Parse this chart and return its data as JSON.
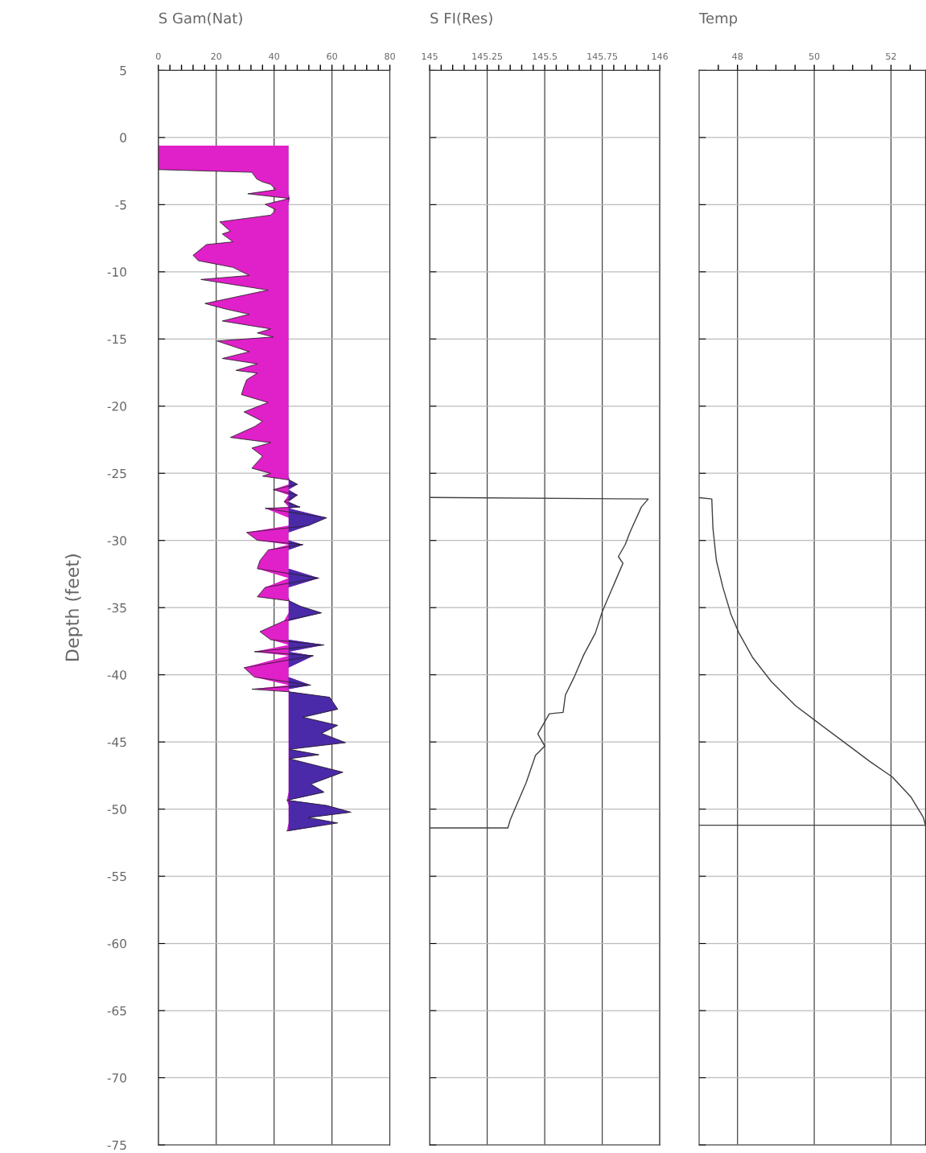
{
  "chart_data": [
    {
      "type": "line",
      "orientation": "horizontal",
      "title": "S Gam(Nat)",
      "ylabel": "Depth (feet)",
      "grid": true,
      "xlim": [
        0,
        80
      ],
      "xticks": [
        0,
        {
          "value": 4,
          "label": null
        },
        {
          "value": 8,
          "label": null
        },
        {
          "value": 12,
          "label": null
        },
        {
          "value": 16,
          "label": null
        },
        20,
        {
          "value": 24,
          "label": null
        },
        {
          "value": 28,
          "label": null
        },
        {
          "value": 32,
          "label": null
        },
        {
          "value": 36,
          "label": null
        },
        40,
        {
          "value": 44,
          "label": null
        },
        {
          "value": 48,
          "label": null
        },
        {
          "value": 52,
          "label": null
        },
        {
          "value": 56,
          "label": null
        },
        60,
        {
          "value": 64,
          "label": null
        },
        {
          "value": 68,
          "label": null
        },
        {
          "value": 72,
          "label": null
        },
        {
          "value": 76,
          "label": null
        },
        80
      ],
      "ylim": [
        -75,
        5
      ],
      "yticks": [
        5,
        0,
        -5,
        -10,
        -15,
        -20,
        -25,
        -30,
        -35,
        -40,
        -45,
        -50,
        -55,
        -60,
        -65,
        -70,
        -75
      ],
      "x": [
        -0.6,
        -2.39,
        -2.59,
        -3.09,
        -3.29,
        -3.49,
        -3.89,
        -4.19,
        -4.54,
        -4.98,
        -5.38,
        -5.78,
        -6.28,
        -6.98,
        -7.18,
        -7.77,
        -7.97,
        -8.77,
        -9.17,
        -9.67,
        -10.27,
        -10.57,
        -11.36,
        -12.36,
        -12.76,
        -13.16,
        -13.66,
        -14.25,
        -14.55,
        -14.85,
        -15.15,
        -15.95,
        -16.45,
        -16.85,
        -17.34,
        -17.54,
        -18.04,
        -18.54,
        -19.14,
        -19.73,
        -20.43,
        -21.13,
        -21.53,
        -22.33,
        -22.72,
        -23.12,
        -23.72,
        -24.62,
        -25.01,
        -25.21,
        -25.5,
        -25.82,
        -26.22,
        -26.62,
        -27.11,
        -27.51,
        -27.61,
        -28.31,
        -28.9,
        -29.4,
        -29.99,
        -30.31,
        -30.7,
        -31.5,
        -32.1,
        -32.8,
        -33.49,
        -34.19,
        -34.5,
        -34.89,
        -35.39,
        -35.99,
        -36.79,
        -37.39,
        -37.78,
        -38.28,
        -38.58,
        -39.47,
        -40.17,
        -40.77,
        -41.07,
        -41.27,
        -41.67,
        -42.56,
        -43.16,
        -43.76,
        -44.36,
        -45.05,
        -45.55,
        -45.95,
        -46.25,
        -47.25,
        -48.14,
        -48.74,
        -49.34,
        -49.73,
        -50.23,
        -50.63,
        -51.03,
        -51.63
      ],
      "series": [
        {
          "color": "#202020",
          "lower": [
            0,
            0,
            32.3,
            34,
            35.8,
            38.8,
            40.6,
            30.9,
            45,
            36.9,
            40.6,
            38.8,
            21.2,
            24.9,
            22.1,
            25.8,
            16.6,
            12,
            13.8,
            25.8,
            31.4,
            14.7,
            37.9,
            16.1,
            23.1,
            31.4,
            22.1,
            38.8,
            34.2,
            39.7,
            20.3,
            31.4,
            22.1,
            34.2,
            26.8,
            34.2,
            30.5,
            29.6,
            28.7,
            37.9,
            29.6,
            36,
            33.2,
            24.9,
            38.8,
            32.3,
            36,
            32.3,
            38.8,
            36,
            45,
            45,
            39.7,
            45,
            43.4,
            45,
            36.9,
            45,
            45,
            30.5,
            34.2,
            45,
            38,
            35.1,
            34.2,
            45,
            36.9,
            34.2,
            45,
            45,
            45,
            43.4,
            35.1,
            38.8,
            45,
            33.2,
            45,
            29.6,
            33.2,
            45,
            32.3,
            45,
            45,
            45,
            45,
            45,
            45,
            45,
            45,
            45,
            45,
            45,
            45,
            45,
            44.4,
            45,
            45,
            45,
            45,
            44.4
          ],
          "upper": [
            45,
            45,
            45,
            45,
            45,
            45,
            45,
            45,
            45.3,
            45,
            45,
            45,
            45,
            45,
            45,
            45,
            45,
            45,
            45,
            45,
            45,
            45,
            45,
            45,
            45,
            45,
            45,
            45,
            45,
            45,
            45,
            45,
            45,
            45,
            45,
            45,
            45,
            45,
            45,
            45,
            45,
            45,
            45,
            45,
            45,
            45,
            45,
            45,
            45,
            45,
            45.3,
            48.1,
            45,
            48.1,
            45,
            49,
            45,
            58.2,
            51.8,
            45,
            45,
            50,
            45,
            45,
            45,
            55.5,
            45,
            45,
            45.3,
            49,
            56.4,
            45,
            45,
            45,
            57.3,
            45,
            53.6,
            45,
            45,
            52.7,
            45,
            45.3,
            59.2,
            62,
            50,
            62,
            56.4,
            64.7,
            45.3,
            55.5,
            45.3,
            63.8,
            52.7,
            57.3,
            45,
            58.2,
            66.6,
            51.8,
            62,
            45
          ],
          "colors": [
            "#e020c8",
            "#e020c8",
            "#e020c8",
            "#e020c8",
            "#e020c8",
            "#e020c8",
            "#e020c8",
            "#e020c8",
            "#4a2aa8",
            "#e020c8",
            "#e020c8",
            "#e020c8",
            "#e020c8",
            "#e020c8",
            "#e020c8",
            "#e020c8",
            "#e020c8",
            "#e020c8",
            "#e020c8",
            "#e020c8",
            "#e020c8",
            "#e020c8",
            "#e020c8",
            "#e020c8",
            "#e020c8",
            "#e020c8",
            "#e020c8",
            "#e020c8",
            "#e020c8",
            "#e020c8",
            "#e020c8",
            "#e020c8",
            "#e020c8",
            "#e020c8",
            "#e020c8",
            "#e020c8",
            "#e020c8",
            "#e020c8",
            "#e020c8",
            "#e020c8",
            "#e020c8",
            "#e020c8",
            "#e020c8",
            "#e020c8",
            "#e020c8",
            "#e020c8",
            "#e020c8",
            "#e020c8",
            "#e020c8",
            "#e020c8",
            "#4a2aa8",
            "#4a2aa8",
            "#e020c8",
            "#4a2aa8",
            "#e020c8",
            "#4a2aa8",
            "#e020c8",
            "#4a2aa8",
            "#4a2aa8",
            "#e020c8",
            "#e020c8",
            "#4a2aa8",
            "#e020c8",
            "#e020c8",
            "#e020c8",
            "#4a2aa8",
            "#e020c8",
            "#e020c8",
            "#4a2aa8",
            "#4a2aa8",
            "#4a2aa8",
            "#e020c8",
            "#e020c8",
            "#e020c8",
            "#4a2aa8",
            "#e020c8",
            "#4a2aa8",
            "#e020c8",
            "#e020c8",
            "#4a2aa8",
            "#e020c8",
            "#4a2aa8",
            "#4a2aa8",
            "#4a2aa8",
            "#4a2aa8",
            "#4a2aa8",
            "#4a2aa8",
            "#4a2aa8",
            "#4a2aa8",
            "#4a2aa8",
            "#4a2aa8",
            "#4a2aa8",
            "#4a2aa8",
            "#4a2aa8",
            "#e020c8",
            "#4a2aa8",
            "#4a2aa8",
            "#4a2aa8",
            "#4a2aa8",
            "#e020c8"
          ],
          "values": [
            0,
            0,
            32.3,
            34,
            35.8,
            38.8,
            40.6,
            30.9,
            45.3,
            36.9,
            40.6,
            38.8,
            21.2,
            24.9,
            22.1,
            25.8,
            16.6,
            12,
            13.8,
            25.8,
            31.4,
            14.7,
            37.9,
            16.1,
            23.1,
            31.4,
            22.1,
            38.8,
            34.2,
            39.7,
            20.3,
            31.4,
            22.1,
            34.2,
            26.8,
            34.2,
            30.5,
            29.6,
            28.7,
            37.9,
            29.6,
            36,
            33.2,
            24.9,
            38.8,
            32.3,
            36,
            32.3,
            38.8,
            36,
            45.3,
            48.1,
            39.7,
            48.1,
            43.4,
            49,
            36.9,
            58.2,
            51.8,
            30.5,
            34.2,
            50,
            38,
            35.1,
            34.2,
            55.5,
            36.9,
            34.2,
            45.3,
            49,
            56.4,
            43.4,
            35.1,
            38.8,
            57.3,
            33.2,
            53.6,
            29.6,
            33.2,
            52.7,
            32.3,
            45.3,
            59.2,
            62,
            50,
            62,
            56.4,
            64.7,
            45.3,
            55.5,
            45.3,
            63.8,
            52.7,
            57.3,
            44.4,
            58.2,
            66.6,
            51.8,
            62,
            44.4
          ]
        }
      ]
    },
    {
      "type": "line",
      "orientation": "horizontal",
      "title": "S FI(Res)",
      "grid": true,
      "tick_labels": "x",
      "xlim": [
        145,
        146
      ],
      "xticks": [
        145,
        {
          "value": 145.05,
          "label": null
        },
        {
          "value": 145.1,
          "label": null
        },
        {
          "value": 145.15,
          "label": null
        },
        {
          "value": 145.2,
          "label": null
        },
        145.25,
        {
          "value": 145.3,
          "label": null
        },
        {
          "value": 145.35,
          "label": null
        },
        {
          "value": 145.4,
          "label": null
        },
        {
          "value": 145.45,
          "label": null
        },
        145.5,
        {
          "value": 145.55,
          "label": null
        },
        {
          "value": 145.6,
          "label": null
        },
        {
          "value": 145.65,
          "label": null
        },
        {
          "value": 145.7,
          "label": null
        },
        145.75,
        {
          "value": 145.8,
          "label": null
        },
        {
          "value": 145.85,
          "label": null
        },
        {
          "value": 145.9,
          "label": null
        },
        {
          "value": 145.95,
          "label": null
        },
        146
      ],
      "ylim": [
        -75,
        5
      ],
      "yticks": [
        5,
        0,
        -5,
        -10,
        -15,
        -20,
        -25,
        -30,
        -35,
        -40,
        -45,
        -50,
        -55,
        -60,
        -65,
        -70,
        -75
      ],
      "x": [
        -26.8,
        -26.91,
        -27.51,
        -29.4,
        -30.3,
        -31.2,
        -31.7,
        -32.9,
        -34.5,
        -35.3,
        -36.9,
        -38.5,
        -40.1,
        -41.5,
        -42.8,
        -42.9,
        -43.5,
        -44.4,
        -45.3,
        -46.0,
        -48.0,
        -50.8,
        -51.4,
        -51.4
      ],
      "series": [
        {
          "color": "#404040",
          "values": [
            145.0,
            145.95,
            145.92,
            145.87,
            145.85,
            145.82,
            145.84,
            145.81,
            145.77,
            145.75,
            145.72,
            145.67,
            145.63,
            145.59,
            145.58,
            145.52,
            145.5,
            145.47,
            145.5,
            145.46,
            145.42,
            145.35,
            145.34,
            145.0
          ]
        }
      ]
    },
    {
      "type": "line",
      "orientation": "horizontal",
      "title": "Temp",
      "grid": true,
      "tick_labels": "x",
      "xlim": [
        47,
        52.9
      ],
      "xticks": [
        {
          "value": 47.5,
          "label": null
        },
        48,
        {
          "value": 48.5,
          "label": null
        },
        {
          "value": 49,
          "label": null
        },
        {
          "value": 49.5,
          "label": null
        },
        50,
        {
          "value": 50.5,
          "label": null
        },
        {
          "value": 51,
          "label": null
        },
        {
          "value": 51.5,
          "label": null
        },
        52,
        {
          "value": 52.5,
          "label": null
        }
      ],
      "ylim": [
        -75,
        5
      ],
      "yticks": [
        5,
        0,
        -5,
        -10,
        -15,
        -20,
        -25,
        -30,
        -35,
        -40,
        -45,
        -50,
        -55,
        -60,
        -65,
        -70,
        -75
      ],
      "x": [
        -26.81,
        -26.91,
        -29.1,
        -31.5,
        -33.5,
        -35.5,
        -36.9,
        -38.7,
        -40.5,
        -42.3,
        -43.5,
        -45.3,
        -46.5,
        -47.6,
        -49.1,
        -50.6,
        -51.2,
        -51.2
      ],
      "series": [
        {
          "color": "#404040",
          "values": [
            47.0,
            47.33,
            47.36,
            47.45,
            47.62,
            47.83,
            48.04,
            48.39,
            48.88,
            49.51,
            50.07,
            50.91,
            51.47,
            52.03,
            52.52,
            52.84,
            52.9,
            47.0
          ]
        }
      ]
    }
  ]
}
